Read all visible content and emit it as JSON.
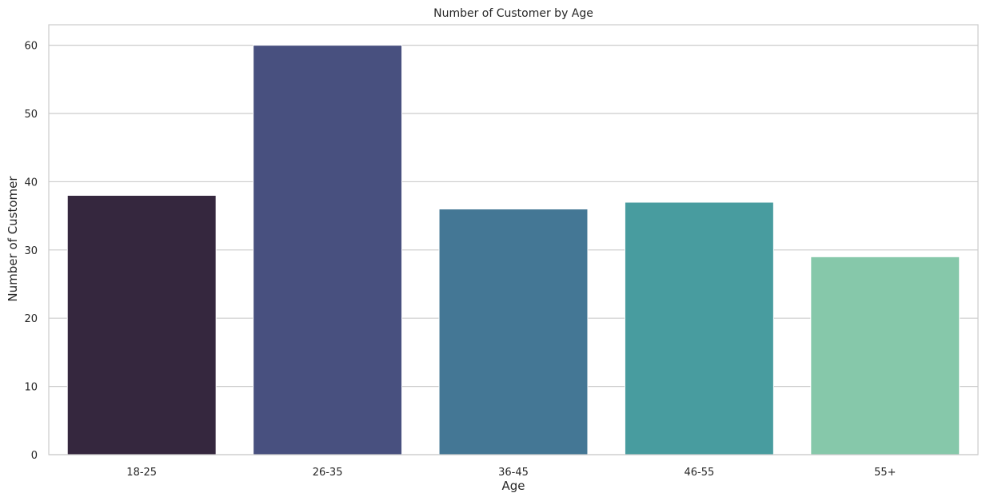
{
  "chart_data": {
    "type": "bar",
    "title": "Number of Customer by Age",
    "xlabel": "Age",
    "ylabel": "Number of Customer",
    "categories": [
      "18-25",
      "26-35",
      "36-45",
      "46-55",
      "55+"
    ],
    "values": [
      38,
      60,
      36,
      37,
      29
    ],
    "colors": [
      "#35273e",
      "#48507f",
      "#447795",
      "#489c9f",
      "#86c8aa"
    ],
    "ylim": [
      0,
      63
    ],
    "yticks": [
      0,
      10,
      20,
      30,
      40,
      50,
      60
    ],
    "grid": "horizontal",
    "legend": "none"
  },
  "colors": {
    "grid": "#cccccc",
    "frame": "#cccccc",
    "text": "#262626",
    "background": "#ffffff"
  }
}
